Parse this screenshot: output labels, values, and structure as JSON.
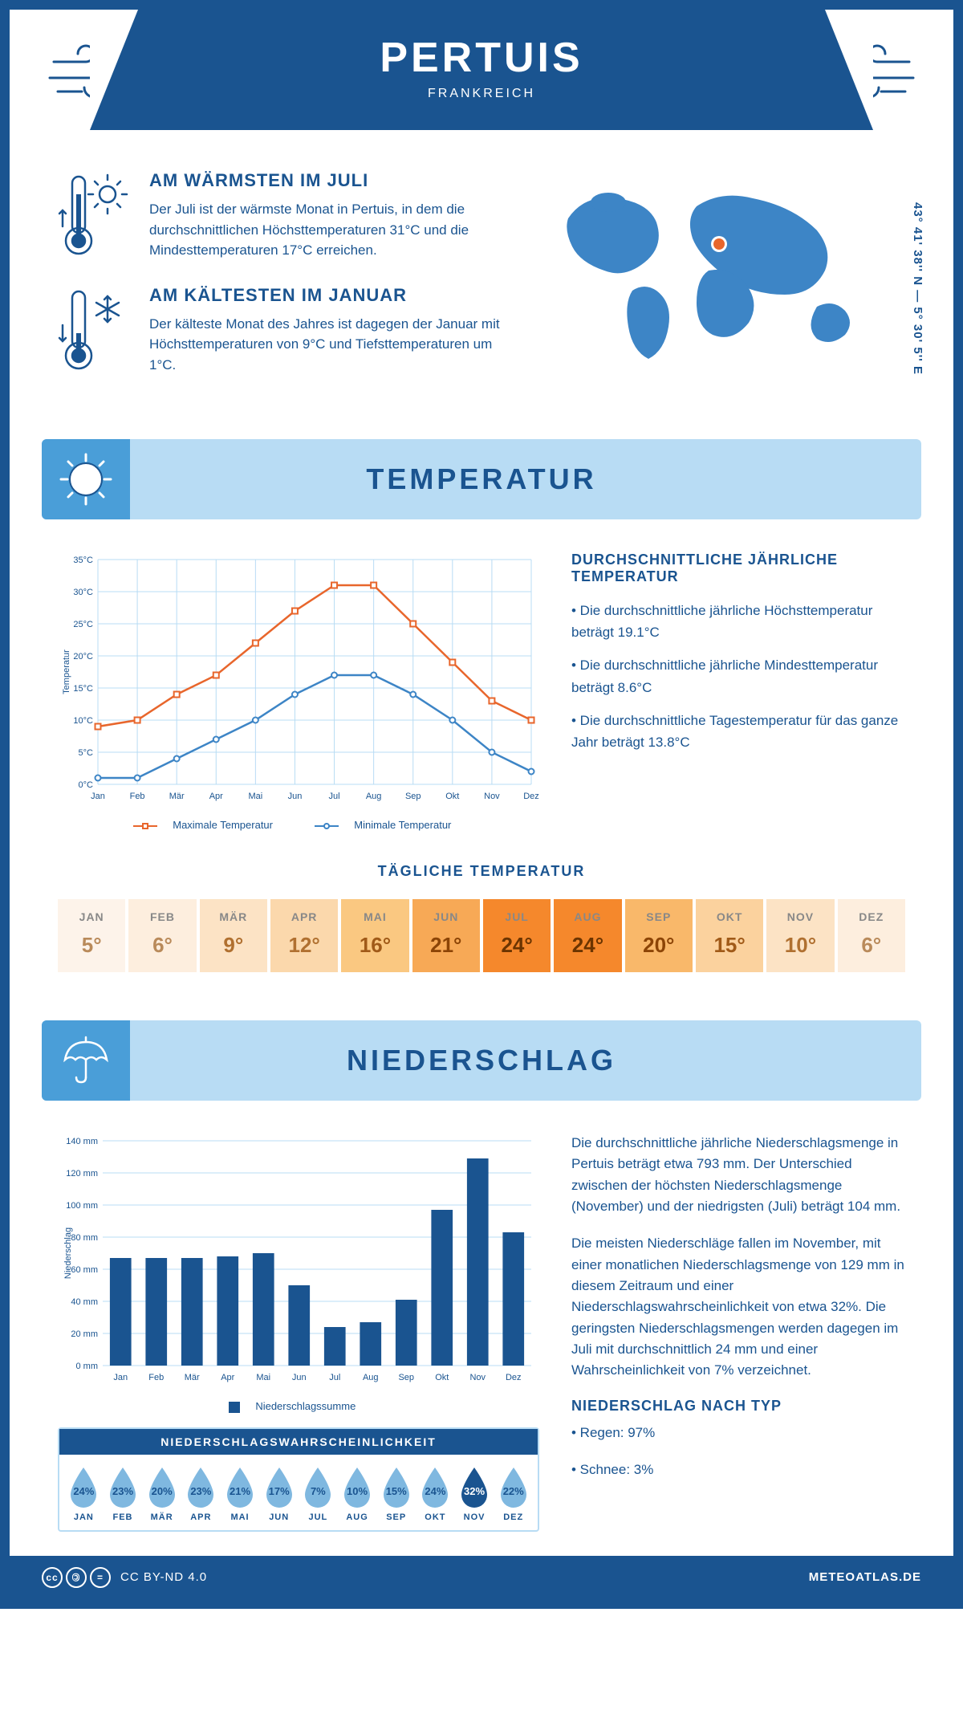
{
  "header": {
    "city": "PERTUIS",
    "country": "FRANKREICH"
  },
  "coords": "43° 41' 38'' N — 5° 30' 5'' E",
  "colors": {
    "primary": "#1a5490",
    "light_blue": "#b8dcf4",
    "mid_blue": "#4a9ed8",
    "orange": "#e8662c",
    "chart_blue": "#3d85c6",
    "drop_light": "#7fb8e0",
    "drop_dark": "#1a5490"
  },
  "intro": {
    "warm": {
      "title": "AM WÄRMSTEN IM JULI",
      "text": "Der Juli ist der wärmste Monat in Pertuis, in dem die durchschnittlichen Höchsttemperaturen 31°C und die Mindesttemperaturen 17°C erreichen."
    },
    "cold": {
      "title": "AM KÄLTESTEN IM JANUAR",
      "text": "Der kälteste Monat des Jahres ist dagegen der Januar mit Höchsttemperaturen von 9°C und Tiefsttemperaturen um 1°C."
    }
  },
  "sections": {
    "temp": "TEMPERATUR",
    "precip": "NIEDERSCHLAG"
  },
  "temp_chart": {
    "y_label": "Temperatur",
    "y_min": 0,
    "y_max": 35,
    "y_step": 5,
    "y_suffix": "°C",
    "months": [
      "Jan",
      "Feb",
      "Mär",
      "Apr",
      "Mai",
      "Jun",
      "Jul",
      "Aug",
      "Sep",
      "Okt",
      "Nov",
      "Dez"
    ],
    "max_series": {
      "label": "Maximale Temperatur",
      "color": "#e8662c",
      "values": [
        9,
        10,
        14,
        17,
        22,
        27,
        31,
        31,
        25,
        19,
        13,
        10
      ]
    },
    "min_series": {
      "label": "Minimale Temperatur",
      "color": "#3d85c6",
      "values": [
        1,
        1,
        4,
        7,
        10,
        14,
        17,
        17,
        14,
        10,
        5,
        2
      ]
    }
  },
  "temp_stats": {
    "title": "DURCHSCHNITTLICHE JÄHRLICHE TEMPERATUR",
    "items": [
      "• Die durchschnittliche jährliche Höchsttemperatur beträgt 19.1°C",
      "• Die durchschnittliche jährliche Mindesttemperatur beträgt 8.6°C",
      "• Die durchschnittliche Tagestemperatur für das ganze Jahr beträgt 13.8°C"
    ]
  },
  "daily": {
    "title": "TÄGLICHE TEMPERATUR",
    "months": [
      "JAN",
      "FEB",
      "MÄR",
      "APR",
      "MAI",
      "JUN",
      "JUL",
      "AUG",
      "SEP",
      "OKT",
      "NOV",
      "DEZ"
    ],
    "values": [
      "5°",
      "6°",
      "9°",
      "12°",
      "16°",
      "21°",
      "24°",
      "24°",
      "20°",
      "15°",
      "10°",
      "6°"
    ],
    "bg_colors": [
      "#fdf3ea",
      "#fdeede",
      "#fce3c5",
      "#fbd8ac",
      "#fac881",
      "#f7a956",
      "#f5882c",
      "#f5882c",
      "#f9b86a",
      "#fbd29e",
      "#fce3c5",
      "#fdeede"
    ],
    "text_colors": [
      "#b98a5a",
      "#b98a5a",
      "#b07030",
      "#b07030",
      "#a05a18",
      "#8c4406",
      "#6b3400",
      "#6b3400",
      "#8c4406",
      "#a05a18",
      "#b07030",
      "#b98a5a"
    ]
  },
  "precip_chart": {
    "y_label": "Niederschlag",
    "y_min": 0,
    "y_max": 140,
    "y_step": 20,
    "y_suffix": " mm",
    "months": [
      "Jan",
      "Feb",
      "Mär",
      "Apr",
      "Mai",
      "Jun",
      "Jul",
      "Aug",
      "Sep",
      "Okt",
      "Nov",
      "Dez"
    ],
    "values": [
      67,
      67,
      67,
      68,
      70,
      50,
      24,
      27,
      41,
      97,
      129,
      83
    ],
    "bar_color": "#1a5490",
    "legend": "Niederschlagssumme"
  },
  "precip_text": {
    "p1": "Die durchschnittliche jährliche Niederschlagsmenge in Pertuis beträgt etwa 793 mm. Der Unterschied zwischen der höchsten Niederschlagsmenge (November) und der niedrigsten (Juli) beträgt 104 mm.",
    "p2": "Die meisten Niederschläge fallen im November, mit einer monatlichen Niederschlagsmenge von 129 mm in diesem Zeitraum und einer Niederschlagswahrscheinlichkeit von etwa 32%. Die geringsten Niederschlagsmengen werden dagegen im Juli mit durchschnittlich 24 mm und einer Wahrscheinlichkeit von 7% verzeichnet.",
    "type_title": "NIEDERSCHLAG NACH TYP",
    "types": [
      "• Regen: 97%",
      "• Schnee: 3%"
    ]
  },
  "prob": {
    "title": "NIEDERSCHLAGSWAHRSCHEINLICHKEIT",
    "months": [
      "JAN",
      "FEB",
      "MÄR",
      "APR",
      "MAI",
      "JUN",
      "JUL",
      "AUG",
      "SEP",
      "OKT",
      "NOV",
      "DEZ"
    ],
    "values": [
      "24%",
      "23%",
      "20%",
      "23%",
      "21%",
      "17%",
      "7%",
      "10%",
      "15%",
      "24%",
      "32%",
      "22%"
    ],
    "max_index": 10
  },
  "footer": {
    "license": "CC BY-ND 4.0",
    "site": "METEOATLAS.DE"
  }
}
